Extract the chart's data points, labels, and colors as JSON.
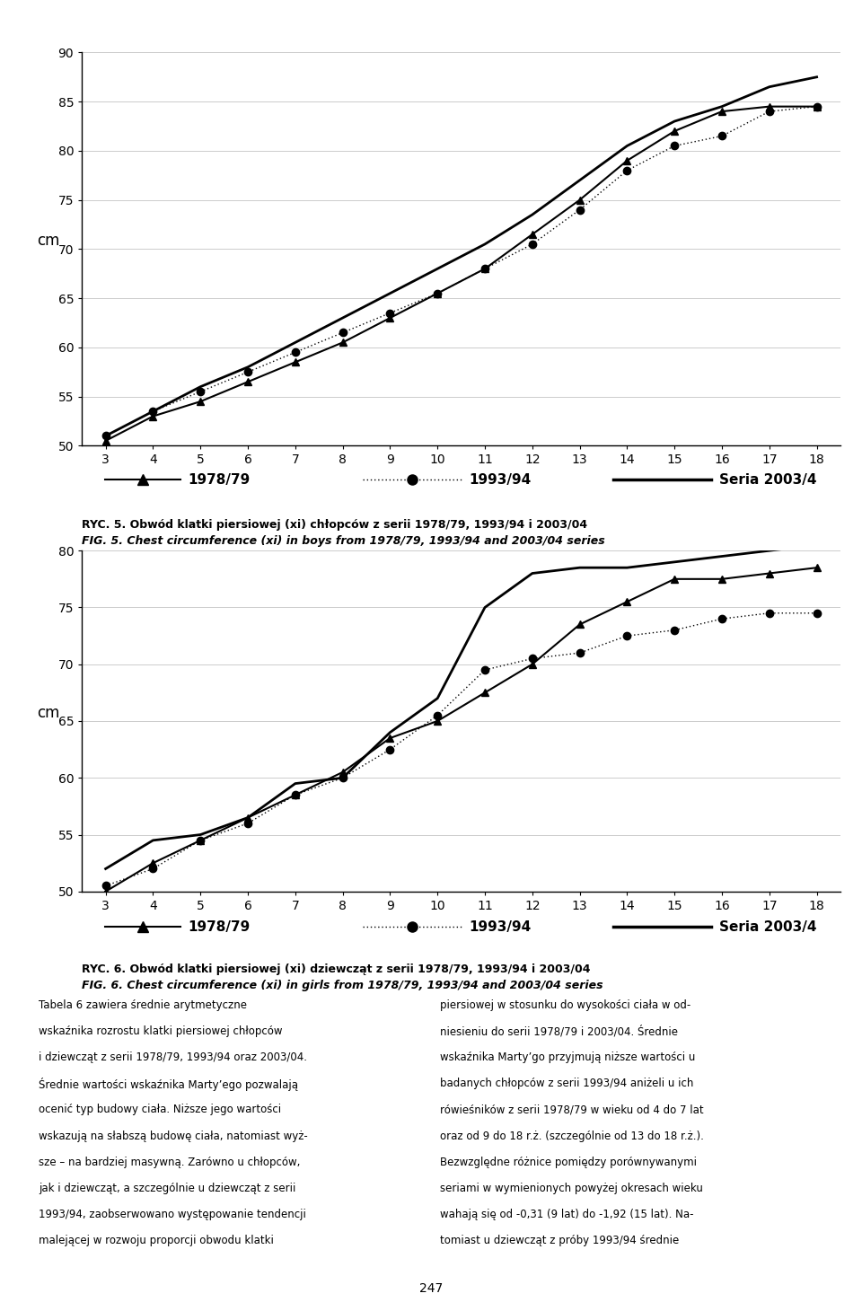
{
  "ages": [
    3,
    4,
    5,
    6,
    7,
    8,
    9,
    10,
    11,
    12,
    13,
    14,
    15,
    16,
    17,
    18
  ],
  "chart1_title_pl": "RYC. 5. Obwód klatki piersiowej (xi) chłopców z serii 1978/79, 1993/94 i 2003/04",
  "chart1_title_en": "FIG. 5. Chest circumference (xi) in boys from 1978/79, 1993/94 and 2003/04 series",
  "chart2_title_pl": "RYC. 6. Obwód klatki piersiowej (xi) dziewcząt z serii 1978/79, 1993/94 i 2003/04",
  "chart2_title_en": "FIG. 6. Chest circumference (xi) in girls from 1978/79, 1993/94 and 2003/04 series",
  "ylabel": "cm",
  "chart1_ylim": [
    50,
    90
  ],
  "chart1_yticks": [
    50,
    55,
    60,
    65,
    70,
    75,
    80,
    85,
    90
  ],
  "chart2_ylim": [
    50,
    80
  ],
  "chart2_yticks": [
    50,
    55,
    60,
    65,
    70,
    75,
    80
  ],
  "boys_1978": [
    50.5,
    53.0,
    54.5,
    56.5,
    58.5,
    60.5,
    63.0,
    65.5,
    68.0,
    71.5,
    75.0,
    79.0,
    82.0,
    84.0,
    84.5,
    84.5
  ],
  "boys_1993": [
    51.0,
    53.5,
    55.5,
    57.5,
    59.5,
    61.5,
    63.5,
    65.5,
    68.0,
    70.5,
    74.0,
    78.0,
    80.5,
    81.5,
    84.0,
    84.5
  ],
  "boys_2003": [
    51.0,
    53.5,
    56.0,
    58.0,
    60.5,
    63.0,
    65.5,
    68.0,
    70.5,
    73.5,
    77.0,
    80.5,
    83.0,
    84.5,
    86.5,
    87.5
  ],
  "girls_1978": [
    50.0,
    52.5,
    54.5,
    56.5,
    58.5,
    60.5,
    63.5,
    65.0,
    67.5,
    70.0,
    73.5,
    75.5,
    77.5,
    77.5,
    78.0,
    78.5
  ],
  "girls_1993": [
    50.5,
    52.0,
    54.5,
    56.0,
    58.5,
    60.0,
    62.5,
    65.5,
    69.5,
    70.5,
    71.0,
    72.5,
    73.0,
    74.0,
    74.5,
    74.5
  ],
  "girls_2003": [
    52.0,
    54.5,
    55.0,
    56.5,
    59.5,
    60.0,
    64.0,
    67.0,
    75.0,
    78.0,
    78.5,
    78.5,
    79.0,
    79.5,
    80.0,
    80.5
  ],
  "legend_1978": "1978/79",
  "legend_1993": "1993/94",
  "legend_2003": "Seria 2003/4",
  "color_black": "#000000",
  "bg_color": "#ffffff",
  "text_left_col": [
    "Tabela 6 zawiera średnie arytmetyczne",
    "wskaźnika rozrostu klatki piersiowej chłopców",
    "i dziewcząt z serii 1978/79, 1993/94 oraz 2003/04.",
    "Średnie wartości wskaźnika Marty’ego pozwalają",
    "ocenić typ budowy ciała. Niższe jego wartości",
    "wskazują na słabszą budowę ciała, natomiast wyż-",
    "sze – na bardziej masywną. Zarówno u chłopców,",
    "jak i dziewcząt, a szczególnie u dziewcząt z serii",
    "1993/94, zaobserwowano występowanie tendencji",
    "malejącej w rozwoju proporcji obwodu klatki"
  ],
  "text_right_col": [
    "piersiowej w stosunku do wysokości ciała w od-",
    "niesieniu do serii 1978/79 i 2003/04. Średnie",
    "wskaźnika Marty’go przyjmują niższe wartości u",
    "badanych chłopców z serii 1993/94 aniżeli u ich",
    "rówieśników z serii 1978/79 w wieku od 4 do 7 lat",
    "oraz od 9 do 18 r.ż. (szczególnie od 13 do 18 r.ż.).",
    "Bezwzględne różnice pomiędzy porównywanymi",
    "seriami w wymienionych powyżej okresach wieku",
    "wahają się od -0,31 (9 lat) do -1,92 (15 lat). Na-",
    "tomiast u dziewcząt z próby 1993/94 średnie"
  ],
  "page_number": "247"
}
